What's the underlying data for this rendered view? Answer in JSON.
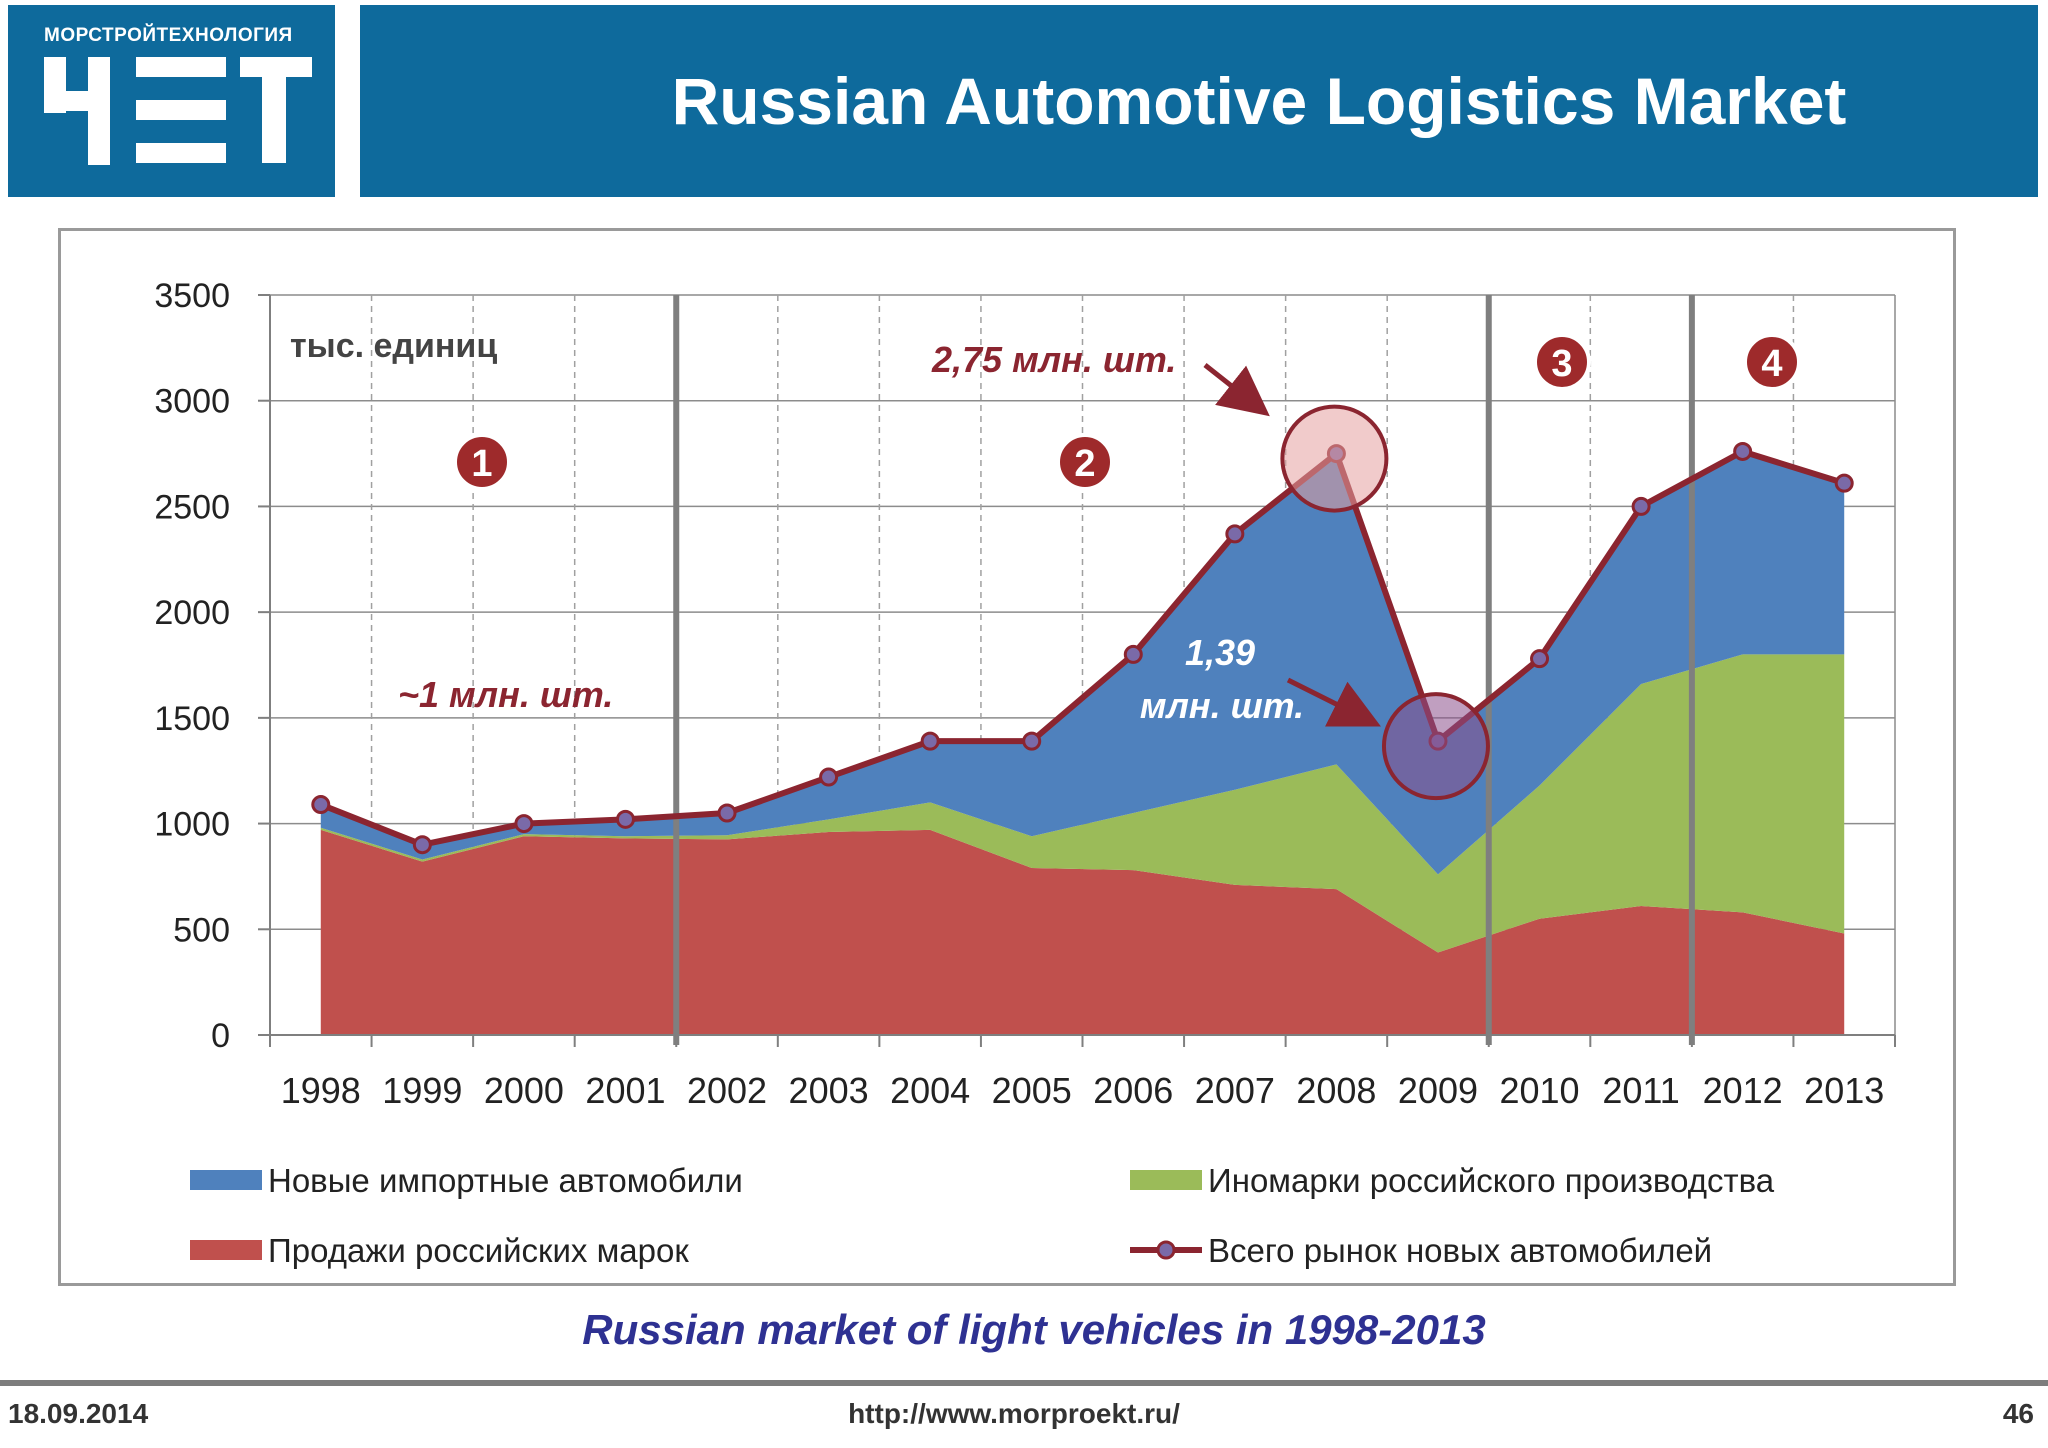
{
  "header": {
    "logo_company": "МОРСТРОЙТЕХНОЛОГИЯ",
    "title": "Russian Automotive Logistics Market"
  },
  "colors": {
    "header_bg": "#0e6a9c",
    "imports": "#4f81bd",
    "foreign_local": "#9bbb59",
    "russian": "#c0504d",
    "total_line": "#8b2530",
    "annotation": "#8b2530",
    "caption": "#2e3192",
    "period_line": "#7f7f7f"
  },
  "chart_data": {
    "type": "area",
    "unit_label": "тыс. единиц",
    "ylim": [
      0,
      3500
    ],
    "yticks": [
      0,
      500,
      1000,
      1500,
      2000,
      2500,
      3000,
      3500
    ],
    "categories": [
      "1998",
      "1999",
      "2000",
      "2001",
      "2002",
      "2003",
      "2004",
      "2005",
      "2006",
      "2007",
      "2008",
      "2009",
      "2010",
      "2011",
      "2012",
      "2013"
    ],
    "series": [
      {
        "name": "Продажи российских марок",
        "type": "area",
        "color": "#c0504d",
        "values": [
          970,
          820,
          940,
          930,
          925,
          960,
          970,
          790,
          780,
          710,
          690,
          390,
          550,
          610,
          580,
          480
        ]
      },
      {
        "name": "Иномарки российского производства",
        "type": "area",
        "color": "#9bbb59",
        "values": [
          10,
          10,
          10,
          10,
          20,
          60,
          130,
          150,
          270,
          450,
          590,
          370,
          630,
          1050,
          1220,
          1320
        ]
      },
      {
        "name": "Новые импортные автомобили",
        "type": "area",
        "color": "#4f81bd",
        "values": [
          110,
          70,
          50,
          80,
          105,
          200,
          290,
          450,
          750,
          1210,
          1470,
          630,
          600,
          840,
          960,
          810
        ]
      },
      {
        "name": "Всего рынок новых автомобилей",
        "type": "line",
        "color": "#8b2530",
        "values": [
          1090,
          900,
          1000,
          1020,
          1050,
          1220,
          1390,
          1390,
          1800,
          2370,
          2750,
          1390,
          1780,
          2500,
          2760,
          2610
        ]
      }
    ],
    "period_dividers_after": [
      "2001",
      "2009",
      "2011"
    ],
    "period_markers": [
      "1",
      "2",
      "3",
      "4"
    ],
    "annotations": {
      "period1": "~1 млн. шт.",
      "peak": "2,75 млн. шт.",
      "trough_line1": "1,39",
      "trough_line2": "млн. шт."
    },
    "highlighted_years": [
      "2008",
      "2009"
    ]
  },
  "legend": {
    "imports": "Новые импортные автомобили",
    "foreign_local": "Иномарки российского производства",
    "russian": "Продажи российских марок",
    "total": "Всего рынок новых автомобилей"
  },
  "caption": "Russian market of light vehicles in 1998-2013",
  "footer": {
    "date": "18.09.2014",
    "url": "http://www.morproekt.ru/",
    "page": "46"
  }
}
